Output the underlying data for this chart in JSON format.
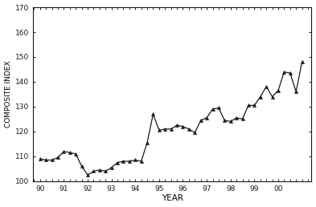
{
  "x": [
    1990.0,
    1990.25,
    1990.5,
    1990.75,
    1991.0,
    1991.25,
    1991.5,
    1991.75,
    1992.0,
    1992.25,
    1992.5,
    1992.75,
    1993.0,
    1993.25,
    1993.5,
    1993.75,
    1994.0,
    1994.25,
    1994.5,
    1994.75,
    1995.0,
    1995.25,
    1995.5,
    1995.75,
    1996.0,
    1996.25,
    1996.5,
    1996.75,
    1997.0,
    1997.25,
    1997.5,
    1997.75,
    1998.0,
    1998.25,
    1998.5,
    1998.75,
    1999.0,
    1999.25,
    1999.5,
    1999.75,
    2000.0,
    2000.25,
    2000.5,
    2000.75,
    2001.0
  ],
  "y": [
    109.0,
    108.5,
    108.5,
    109.5,
    112.0,
    111.5,
    111.0,
    106.0,
    102.5,
    104.0,
    104.5,
    104.0,
    105.5,
    107.5,
    108.0,
    108.0,
    108.5,
    108.0,
    115.5,
    127.0,
    120.5,
    121.0,
    121.0,
    122.5,
    122.0,
    121.0,
    119.5,
    124.5,
    125.5,
    129.0,
    129.5,
    124.5,
    124.0,
    125.5,
    125.0,
    130.5,
    130.5,
    134.0,
    138.0,
    134.0,
    136.5,
    144.0,
    143.5,
    136.0,
    148.0
  ],
  "xlim": [
    1989.7,
    2001.4
  ],
  "ylim": [
    100,
    170
  ],
  "yticks": [
    100,
    110,
    120,
    130,
    140,
    150,
    160,
    170
  ],
  "xtick_labels": [
    "90",
    "91",
    "92",
    "93",
    "94",
    "95",
    "96",
    "97",
    "98",
    "99",
    "00"
  ],
  "xtick_positions": [
    1990,
    1991,
    1992,
    1993,
    1994,
    1995,
    1996,
    1997,
    1998,
    1999,
    2000
  ],
  "xlabel": "YEAR",
  "ylabel": "COMPOSITE INDEX",
  "line_color": "#1a1a1a",
  "marker": "^",
  "marker_size": 3.0,
  "linewidth": 0.9,
  "bg_color": "#ffffff",
  "axes_color": "#1a1a1a",
  "tick_fontsize": 6.5,
  "label_fontsize": 7.5,
  "ylabel_fontsize": 6.5
}
